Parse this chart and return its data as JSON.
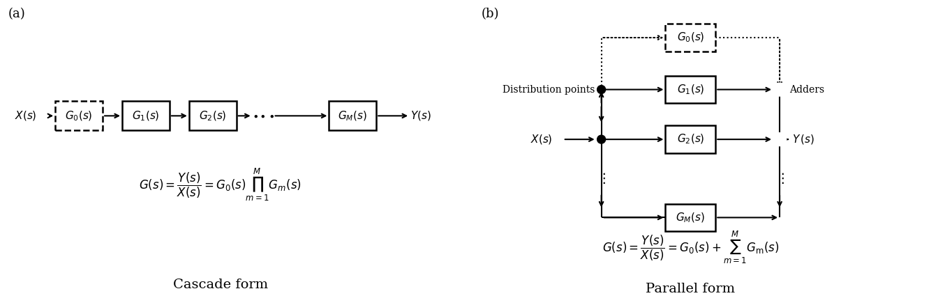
{
  "fig_width": 13.54,
  "fig_height": 4.38,
  "bg_color": "#ffffff",
  "label_a": "(a)",
  "label_b": "(b)",
  "cascade_title": "Cascade form",
  "parallel_title": "Parallel form",
  "black": "#000000",
  "white": "#ffffff"
}
